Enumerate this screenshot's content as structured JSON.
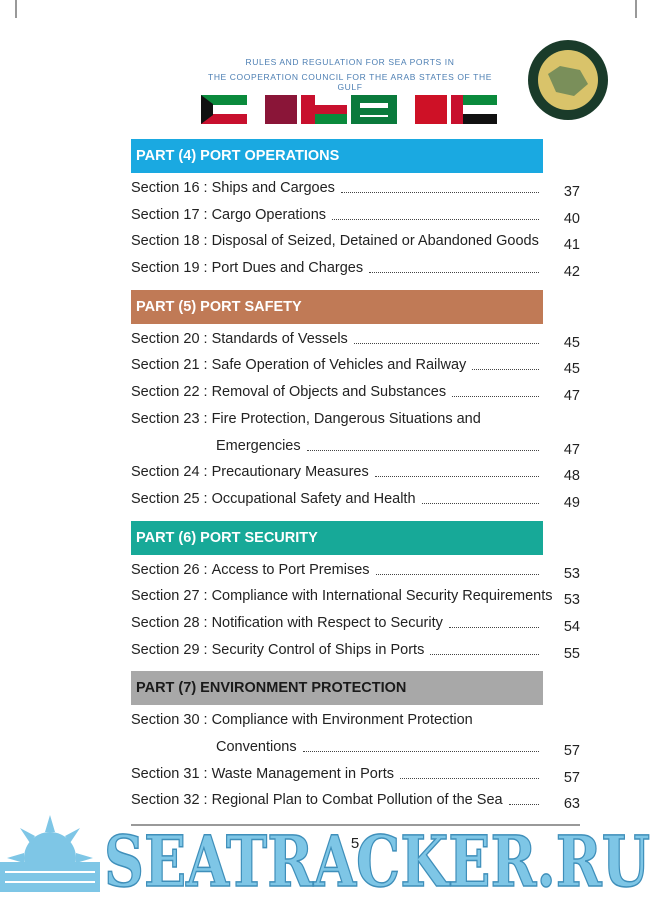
{
  "header": {
    "line1": "RULES AND REGULATION FOR SEA PORTS IN",
    "line2": "THE COOPERATION COUNCIL FOR THE ARAB STATES OF THE GULF"
  },
  "parts": [
    {
      "title": "PART (4) PORT OPERATIONS",
      "color": "#1aa9e1",
      "text_color": "#ffffff",
      "sections": [
        {
          "number": "Section 16 :",
          "title": " Ships and Cargoes",
          "page": 37
        },
        {
          "number": "Section 17 :",
          "title": "Cargo Operations",
          "page": 40
        },
        {
          "number": "Section 18 :",
          "title": "Disposal of Seized, Detained or Abandoned Goods",
          "page": 41
        },
        {
          "number": "Section 19 :",
          "title": "Port Dues and Charges",
          "page": 42
        }
      ]
    },
    {
      "title": "PART (5) PORT SAFETY",
      "color": "#c07a56",
      "text_color": "#ffffff",
      "sections": [
        {
          "number": "Section 20 :",
          "title": "Standards of Vessels",
          "page": 45
        },
        {
          "number": "Section 21 :",
          "title": "Safe Operation of Vehicles and Railway",
          "page": 45
        },
        {
          "number": "Section 22 :",
          "title": "Removal of Objects and Substances",
          "page": 47
        },
        {
          "number": "Section 23 :",
          "title": "Fire Protection, Dangerous Situations and",
          "title_cont": "Emergencies",
          "page": 47
        },
        {
          "number": "Section 24 :",
          "title": "Precautionary Measures",
          "page": 48
        },
        {
          "number": "Section 25 :",
          "title": "Occupational Safety and Health",
          "page": 49
        }
      ]
    },
    {
      "title": "PART (6) PORT SECURITY",
      "color": "#17a998",
      "text_color": "#ffffff",
      "sections": [
        {
          "number": "Section 26 :",
          "title": "Access to Port Premises",
          "page": 53
        },
        {
          "number": "Section 27 :",
          "title": "Compliance with International Security Requirements",
          "page": 53
        },
        {
          "number": "Section 28 :",
          "title": "Notification with Respect to Security",
          "page": 54
        },
        {
          "number": "Section 29 :",
          "title": "Security Control of Ships in Ports",
          "page": 55
        }
      ]
    },
    {
      "title": "PART (7) ENVIRONMENT PROTECTION",
      "color": "#a8a8a8",
      "text_color": "#1a1a1a",
      "sections": [
        {
          "number": "Section 30 :",
          "title": "Compliance with Environment Protection",
          "title_cont": "Conventions",
          "page": 57
        },
        {
          "number": "Section 31 :",
          "title": "Waste Management in Ports",
          "page": 57
        },
        {
          "number": "Section 32 :",
          "title": "Regional Plan to Combat Pollution of the Sea",
          "page": 63
        }
      ]
    }
  ],
  "footer": {
    "page_number": 5,
    "watermark": "SEATRACKER.RU"
  }
}
